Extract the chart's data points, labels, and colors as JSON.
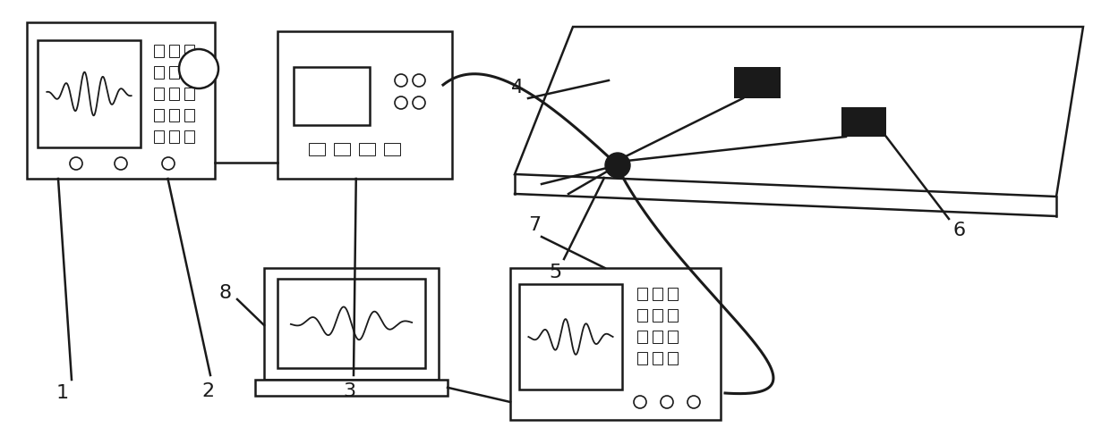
{
  "bg_color": "#ffffff",
  "line_color": "#1a1a1a",
  "fig_width": 12.4,
  "fig_height": 4.97
}
